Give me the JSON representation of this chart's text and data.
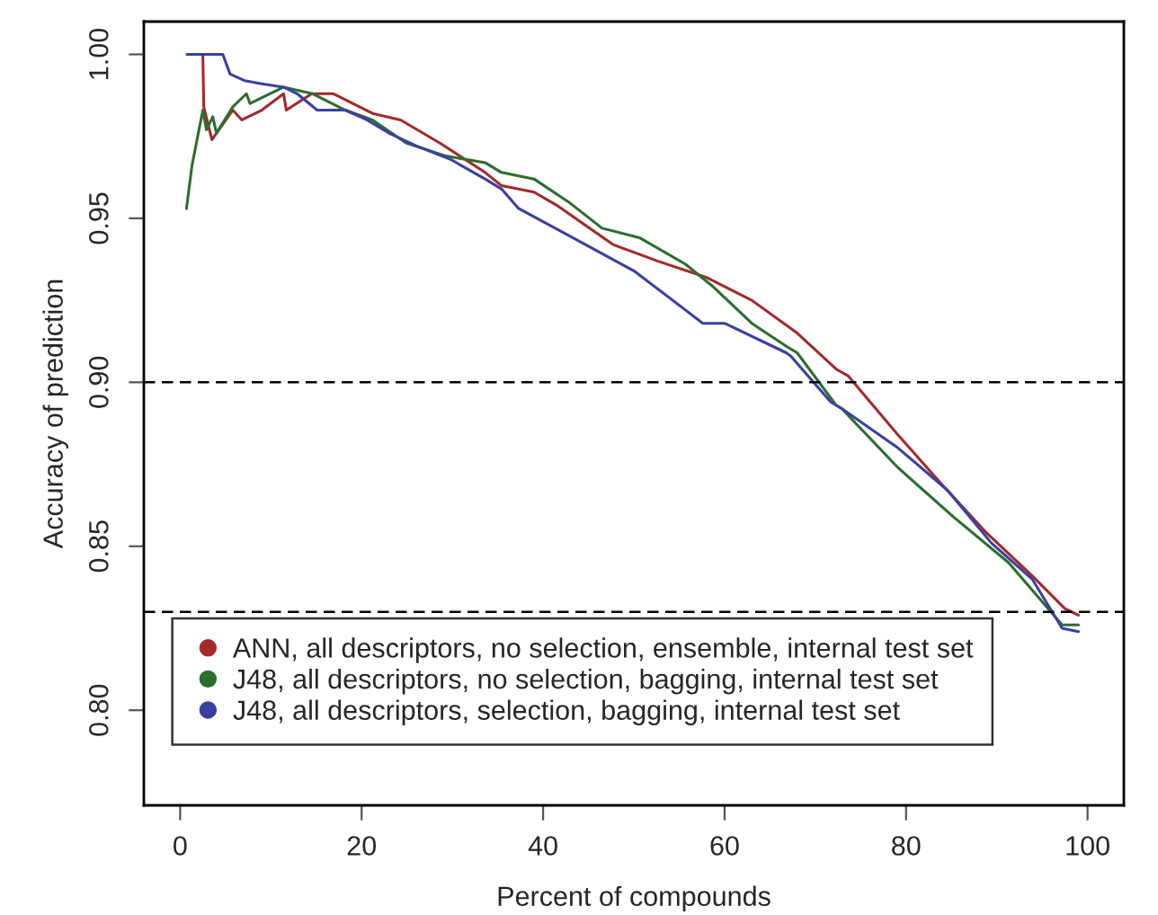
{
  "chart_data": {
    "type": "line",
    "xlabel": "Percent of compounds",
    "ylabel": "Accuracy of prediction",
    "xlim": [
      -4,
      104
    ],
    "ylim": [
      0.771,
      1.01
    ],
    "xticks": [
      0,
      20,
      40,
      60,
      80,
      100
    ],
    "yticks": [
      {
        "value": 0.8,
        "label": "0.80"
      },
      {
        "value": 0.85,
        "label": "0.85"
      },
      {
        "value": 0.9,
        "label": "0.90"
      },
      {
        "value": 0.95,
        "label": "0.95"
      },
      {
        "value": 1.0,
        "label": "1.00"
      }
    ],
    "grid": false,
    "legend": "bottom left",
    "marker": "none",
    "line_style": "solid",
    "ref_lines": [
      {
        "axis": "y",
        "value": 0.9,
        "color": "#000000",
        "line_style": "dashed"
      },
      {
        "axis": "y",
        "value": 0.83,
        "color": "#000000",
        "line_style": "dashed"
      }
    ],
    "series": [
      {
        "name": "ANN, all descriptors, no selection, ensemble, internal test set",
        "color": "#a3292b",
        "x": [
          2.5,
          2.6,
          3.5,
          5.8,
          6.8,
          9,
          11.4,
          11.7,
          14.5,
          16.9,
          21.2,
          24.3,
          28.6,
          33.6,
          35.4,
          39,
          41.5,
          47.7,
          52.6,
          58,
          63,
          68,
          72.3,
          73.6,
          79.1,
          83.9,
          88.9,
          93.9,
          97.5,
          99
        ],
        "values": [
          1.0,
          0.984,
          0.974,
          0.983,
          0.98,
          0.983,
          0.988,
          0.983,
          0.988,
          0.988,
          0.982,
          0.98,
          0.973,
          0.964,
          0.96,
          0.958,
          0.954,
          0.942,
          0.937,
          0.932,
          0.925,
          0.915,
          0.904,
          0.902,
          0.884,
          0.869,
          0.854,
          0.841,
          0.831,
          0.829
        ]
      },
      {
        "name": "J48, all descriptors, no selection, bagging, internal test set",
        "color": "#2b6e30",
        "x": [
          0.7,
          1.3,
          2.5,
          2.9,
          3.6,
          4,
          5.8,
          7.3,
          7.7,
          11.4,
          14.6,
          18.2,
          21.2,
          24.9,
          29.3,
          33.6,
          35.4,
          39,
          42.8,
          46.5,
          50.7,
          55.7,
          58.8,
          63,
          66.8,
          68,
          72.3,
          72.9,
          79.1,
          85.2,
          91.3,
          97.2,
          99
        ],
        "values": [
          0.953,
          0.966,
          0.983,
          0.977,
          0.981,
          0.976,
          0.984,
          0.988,
          0.985,
          0.99,
          0.988,
          0.983,
          0.98,
          0.973,
          0.969,
          0.967,
          0.964,
          0.962,
          0.955,
          0.947,
          0.944,
          0.936,
          0.929,
          0.918,
          0.911,
          0.909,
          0.893,
          0.892,
          0.874,
          0.859,
          0.845,
          0.826,
          0.826
        ]
      },
      {
        "name": "J48, all descriptors, selection, bagging, internal test set",
        "color": "#3a40a0",
        "x": [
          0.75,
          4.7,
          5.5,
          7.1,
          9,
          11.4,
          12.9,
          15.1,
          18.2,
          20.6,
          23,
          26.1,
          29.8,
          33.6,
          35.4,
          37.3,
          40,
          50,
          57.6,
          60,
          66.8,
          67.3,
          71.7,
          72.9,
          79.1,
          84.6,
          89.4,
          93.9,
          97.2,
          99
        ],
        "values": [
          1.0,
          1.0,
          0.994,
          0.992,
          0.991,
          0.99,
          0.988,
          0.983,
          0.983,
          0.98,
          0.976,
          0.972,
          0.968,
          0.962,
          0.959,
          0.953,
          0.949,
          0.934,
          0.918,
          0.918,
          0.909,
          0.908,
          0.894,
          0.892,
          0.88,
          0.867,
          0.851,
          0.84,
          0.825,
          0.824
        ]
      }
    ]
  }
}
